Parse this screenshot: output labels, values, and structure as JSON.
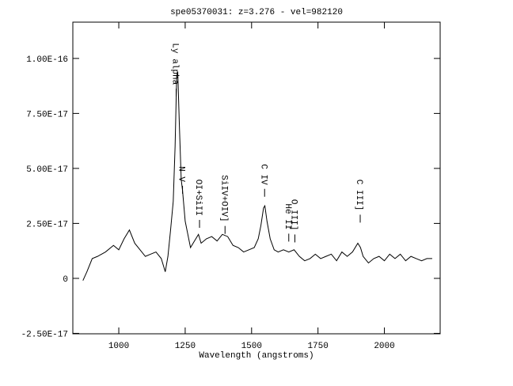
{
  "chart_data": {
    "type": "line",
    "title": "spe05370031: z=3.276 - vel=982120",
    "x_label": "Wavelength (angstroms)",
    "color": "#000000",
    "x": [
      865,
      880,
      900,
      920,
      950,
      980,
      1000,
      1020,
      1040,
      1060,
      1080,
      1100,
      1120,
      1140,
      1160,
      1175,
      1185,
      1195,
      1205,
      1212,
      1218,
      1222,
      1228,
      1235,
      1240,
      1250,
      1260,
      1270,
      1285,
      1300,
      1310,
      1330,
      1350,
      1370,
      1390,
      1410,
      1430,
      1450,
      1470,
      1490,
      1510,
      1525,
      1535,
      1545,
      1550,
      1558,
      1570,
      1585,
      1600,
      1620,
      1640,
      1660,
      1680,
      1700,
      1720,
      1740,
      1760,
      1780,
      1800,
      1820,
      1840,
      1860,
      1880,
      1900,
      1910,
      1920,
      1940,
      1960,
      1980,
      2000,
      2020,
      2040,
      2060,
      2080,
      2100,
      2120,
      2140,
      2160,
      2180
    ],
    "values": [
      -1e-18,
      3e-18,
      9e-18,
      1e-17,
      1.2e-17,
      1.5e-17,
      1.3e-17,
      1.8e-17,
      2.2e-17,
      1.6e-17,
      1.3e-17,
      1e-17,
      1.1e-17,
      1.2e-17,
      9e-18,
      3e-18,
      1e-17,
      2.2e-17,
      3.5e-17,
      6e-17,
      9.2e-17,
      9.4e-17,
      7e-17,
      4.5e-17,
      4e-17,
      2.6e-17,
      2e-17,
      1.4e-17,
      1.7e-17,
      2e-17,
      1.6e-17,
      1.8e-17,
      1.9e-17,
      1.7e-17,
      2e-17,
      1.9e-17,
      1.5e-17,
      1.4e-17,
      1.2e-17,
      1.3e-17,
      1.4e-17,
      1.8e-17,
      2.4e-17,
      3.2e-17,
      3.3e-17,
      2.6e-17,
      1.8e-17,
      1.3e-17,
      1.2e-17,
      1.3e-17,
      1.2e-17,
      1.3e-17,
      1e-17,
      8e-18,
      9e-18,
      1.1e-17,
      9e-18,
      1e-17,
      1.1e-17,
      8e-18,
      1.2e-17,
      1e-17,
      1.2e-17,
      1.6e-17,
      1.4e-17,
      1e-17,
      7e-18,
      9e-18,
      1e-17,
      8e-18,
      1.1e-17,
      9e-18,
      1.1e-17,
      8e-18,
      1e-17,
      9e-18,
      8e-18,
      9e-18,
      9e-18
    ],
    "xlim": [
      827,
      2210
    ],
    "xticks": [
      1000,
      1250,
      1500,
      1750,
      2000
    ],
    "ylim": [
      -2.52e-17,
      1.165e-16
    ],
    "yticks": [
      {
        "value": -2.5e-17,
        "label": "-2.50E-17"
      },
      0,
      {
        "value": 2.5e-17,
        "label": "2.50E-17"
      },
      {
        "value": 5e-17,
        "label": "5.00E-17"
      },
      {
        "value": 7.5e-17,
        "label": "7.50E-17"
      },
      {
        "value": 1e-16,
        "label": "1.00E-16"
      }
    ],
    "annotations": [
      {
        "text": "Ly alpha",
        "x": 1216,
        "y": 1.07e-16
      },
      {
        "text": "N V",
        "x": 1240,
        "y": 5.1e-17
      },
      {
        "text": "OI+SiII",
        "x": 1304,
        "y": 4.5e-17
      },
      {
        "text": "SiIV+OIV]",
        "x": 1400,
        "y": 4.7e-17
      },
      {
        "text": "C IV",
        "x": 1549,
        "y": 5.2e-17
      },
      {
        "text": "He II",
        "x": 1640,
        "y": 3.4e-17
      },
      {
        "text": "O III]",
        "x": 1663,
        "y": 3.6e-17
      },
      {
        "text": "C III]",
        "x": 1909,
        "y": 4.5e-17
      }
    ]
  }
}
